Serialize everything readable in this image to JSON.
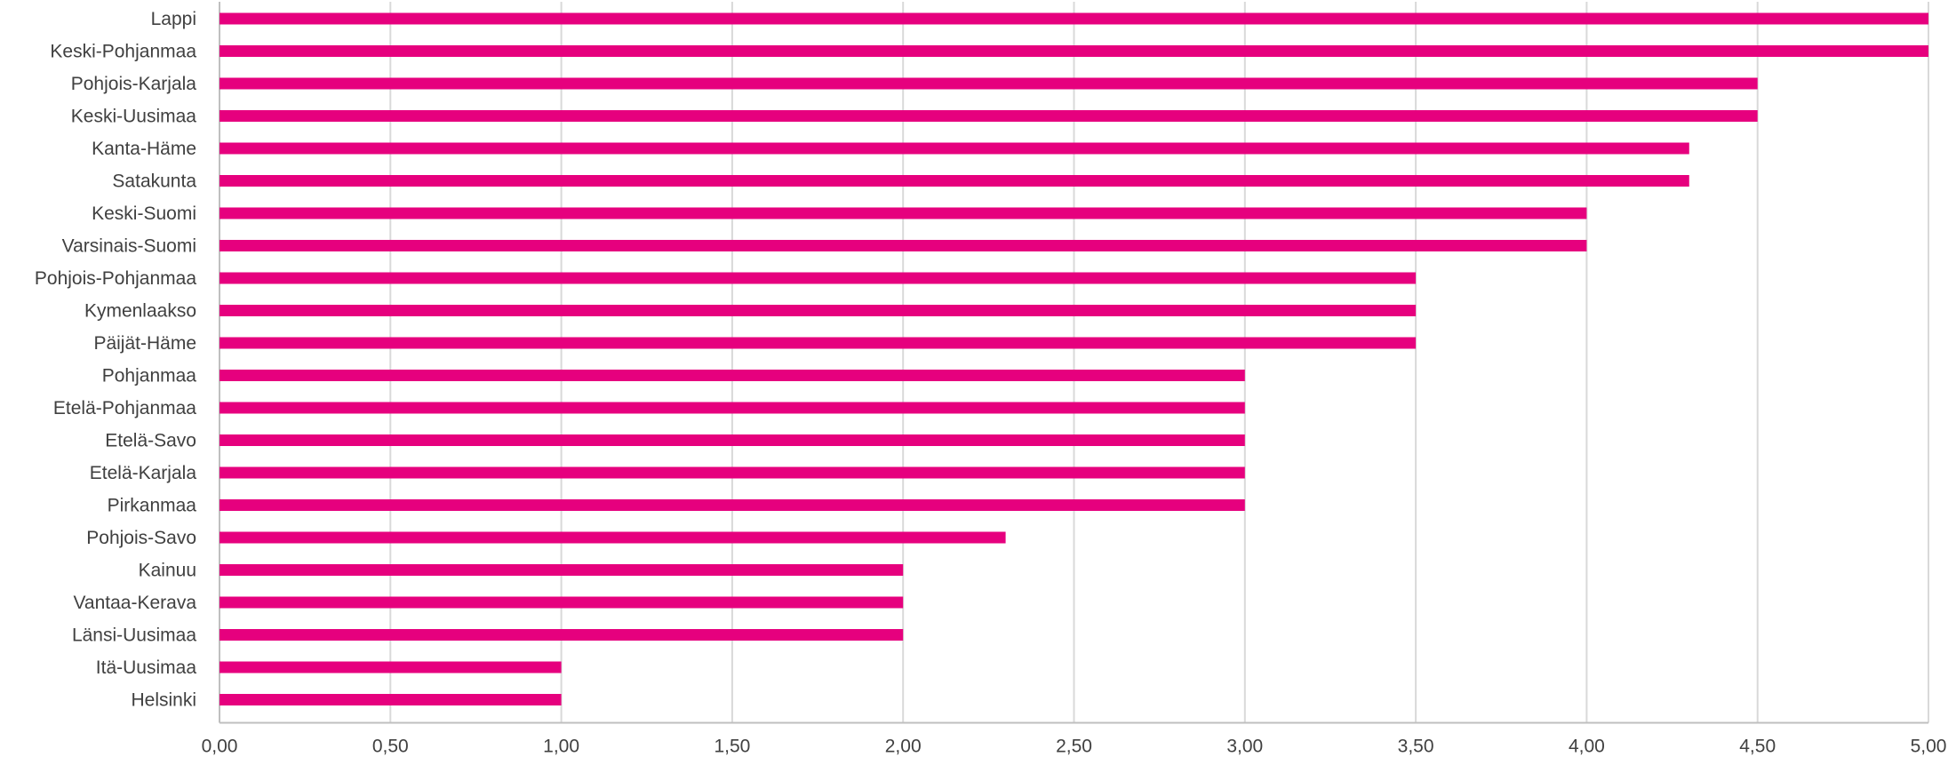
{
  "chart_data": {
    "type": "bar",
    "orientation": "horizontal",
    "categories": [
      "Lappi",
      "Keski-Pohjanmaa",
      "Pohjois-Karjala",
      "Keski-Uusimaa",
      "Kanta-Häme",
      "Satakunta",
      "Keski-Suomi",
      "Varsinais-Suomi",
      "Pohjois-Pohjanmaa",
      "Kymenlaakso",
      "Päijät-Häme",
      "Pohjanmaa",
      "Etelä-Pohjanmaa",
      "Etelä-Savo",
      "Etelä-Karjala",
      "Pirkanmaa",
      "Pohjois-Savo",
      "Kainuu",
      "Vantaa-Kerava",
      "Länsi-Uusimaa",
      "Itä-Uusimaa",
      "Helsinki"
    ],
    "values": [
      5.0,
      5.0,
      4.5,
      4.5,
      4.3,
      4.3,
      4.0,
      4.0,
      3.5,
      3.5,
      3.5,
      3.0,
      3.0,
      3.0,
      3.0,
      3.0,
      2.3,
      2.0,
      2.0,
      2.0,
      1.0,
      1.0
    ],
    "xlim": [
      0,
      5
    ],
    "x_ticks": [
      0,
      0.5,
      1,
      1.5,
      2,
      2.5,
      3,
      3.5,
      4,
      4.5,
      5
    ],
    "x_tick_labels": [
      "0,00",
      "0,50",
      "1,00",
      "1,50",
      "2,00",
      "2,50",
      "3,00",
      "3,50",
      "4,00",
      "4,50",
      "5,00"
    ],
    "title": "",
    "xlabel": "",
    "ylabel": "",
    "grid": "vertical",
    "legend": "none",
    "bar_color": "#e6007e"
  }
}
